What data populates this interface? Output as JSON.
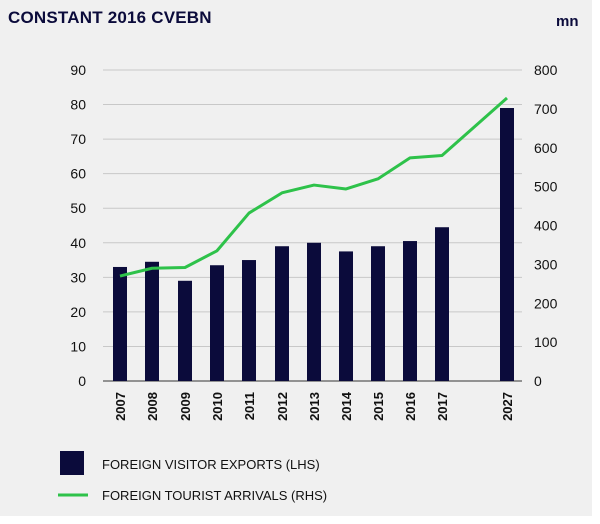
{
  "title": "CONSTANT 2016 CVEBN",
  "right_unit": "mn",
  "colors": {
    "bars": "#0b0b3b",
    "line": "#2ec24a",
    "grid": "#c8c8c8",
    "background": "#f0f0f0"
  },
  "legend": {
    "bars_label": "FOREIGN VISITOR EXPORTS (LHS)",
    "line_label": "FOREIGN TOURIST ARRIVALS (RHS)"
  },
  "chart_data": {
    "type": "bar+line",
    "categories": [
      "2007",
      "2008",
      "2009",
      "2010",
      "2011",
      "2012",
      "2013",
      "2014",
      "2015",
      "2016",
      "2017",
      "2027"
    ],
    "series": [
      {
        "name": "FOREIGN VISITOR EXPORTS (LHS)",
        "type": "bar",
        "axis": "left",
        "values": [
          33,
          34.5,
          29,
          33.5,
          35,
          39,
          40,
          37.5,
          39,
          40.5,
          44.5,
          79
        ]
      },
      {
        "name": "FOREIGN TOURIST ARRIVALS (RHS)",
        "type": "line",
        "axis": "right",
        "values": [
          270,
          290,
          292,
          335,
          432,
          484,
          504,
          494,
          520,
          574,
          580,
          728
        ]
      }
    ],
    "left_axis": {
      "ylim": [
        0,
        90
      ],
      "ticks": [
        "0",
        "10",
        "20",
        "30",
        "40",
        "50",
        "60",
        "70",
        "80",
        "90"
      ]
    },
    "right_axis": {
      "ylim": [
        0,
        800
      ],
      "ticks": [
        "0",
        "100",
        "200",
        "300",
        "400",
        "500",
        "600",
        "700",
        "800"
      ]
    },
    "grid": true,
    "legend_position": "bottom"
  }
}
